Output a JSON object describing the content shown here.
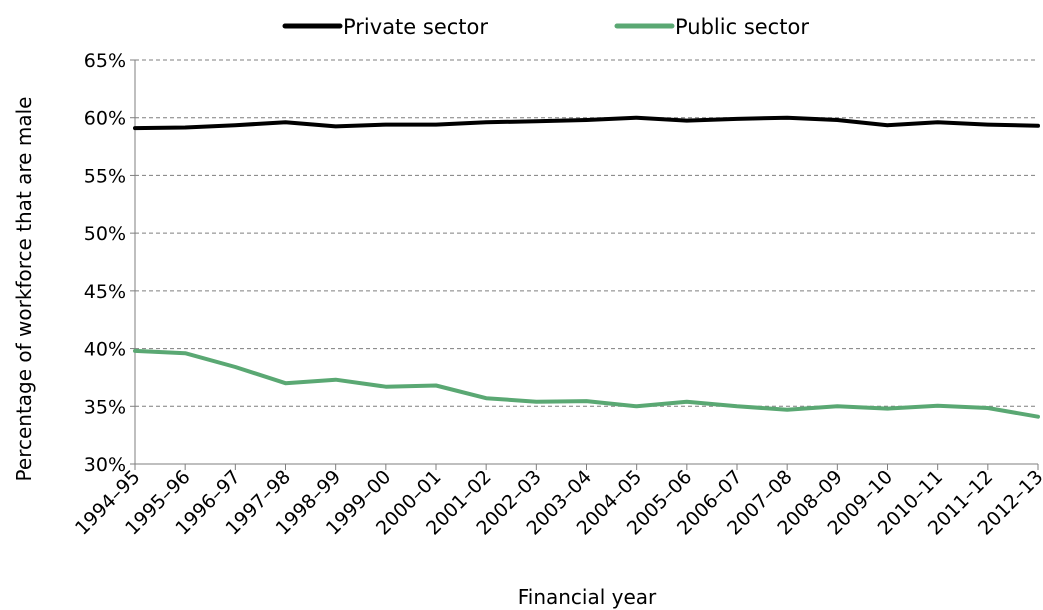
{
  "chart_data": {
    "type": "line",
    "title": "",
    "xlabel": "Financial year",
    "ylabel": "Percentage of workforce that are male",
    "ylim": [
      30,
      65
    ],
    "yticks": [
      30,
      35,
      40,
      45,
      50,
      55,
      60,
      65
    ],
    "ytick_labels": [
      "30%",
      "35%",
      "40%",
      "45%",
      "50%",
      "55%",
      "60%",
      "65%"
    ],
    "grid": true,
    "legend_position": "top",
    "categories": [
      "1994–95",
      "1995–96",
      "1996–97",
      "1997–98",
      "1998–99",
      "1999–00",
      "2000–01",
      "2001–02",
      "2002–03",
      "2003–04",
      "2004–05",
      "2005–06",
      "2006–07",
      "2007–08",
      "2008–09",
      "2009–10",
      "2010–11",
      "2011–12",
      "2012–13"
    ],
    "series": [
      {
        "name": "Private sector",
        "color": "#000000",
        "values": [
          59.1,
          59.15,
          59.35,
          59.6,
          59.25,
          59.4,
          59.4,
          59.6,
          59.7,
          59.8,
          60.0,
          59.75,
          59.9,
          60.0,
          59.8,
          59.35,
          59.6,
          59.4,
          59.3
        ]
      },
      {
        "name": "Public sector",
        "color": "#5aa873",
        "values": [
          39.8,
          39.6,
          38.4,
          37.0,
          37.3,
          36.7,
          36.8,
          35.7,
          35.4,
          35.45,
          35.0,
          35.4,
          35.0,
          34.7,
          35.0,
          34.8,
          35.05,
          34.85,
          34.1
        ]
      }
    ]
  }
}
